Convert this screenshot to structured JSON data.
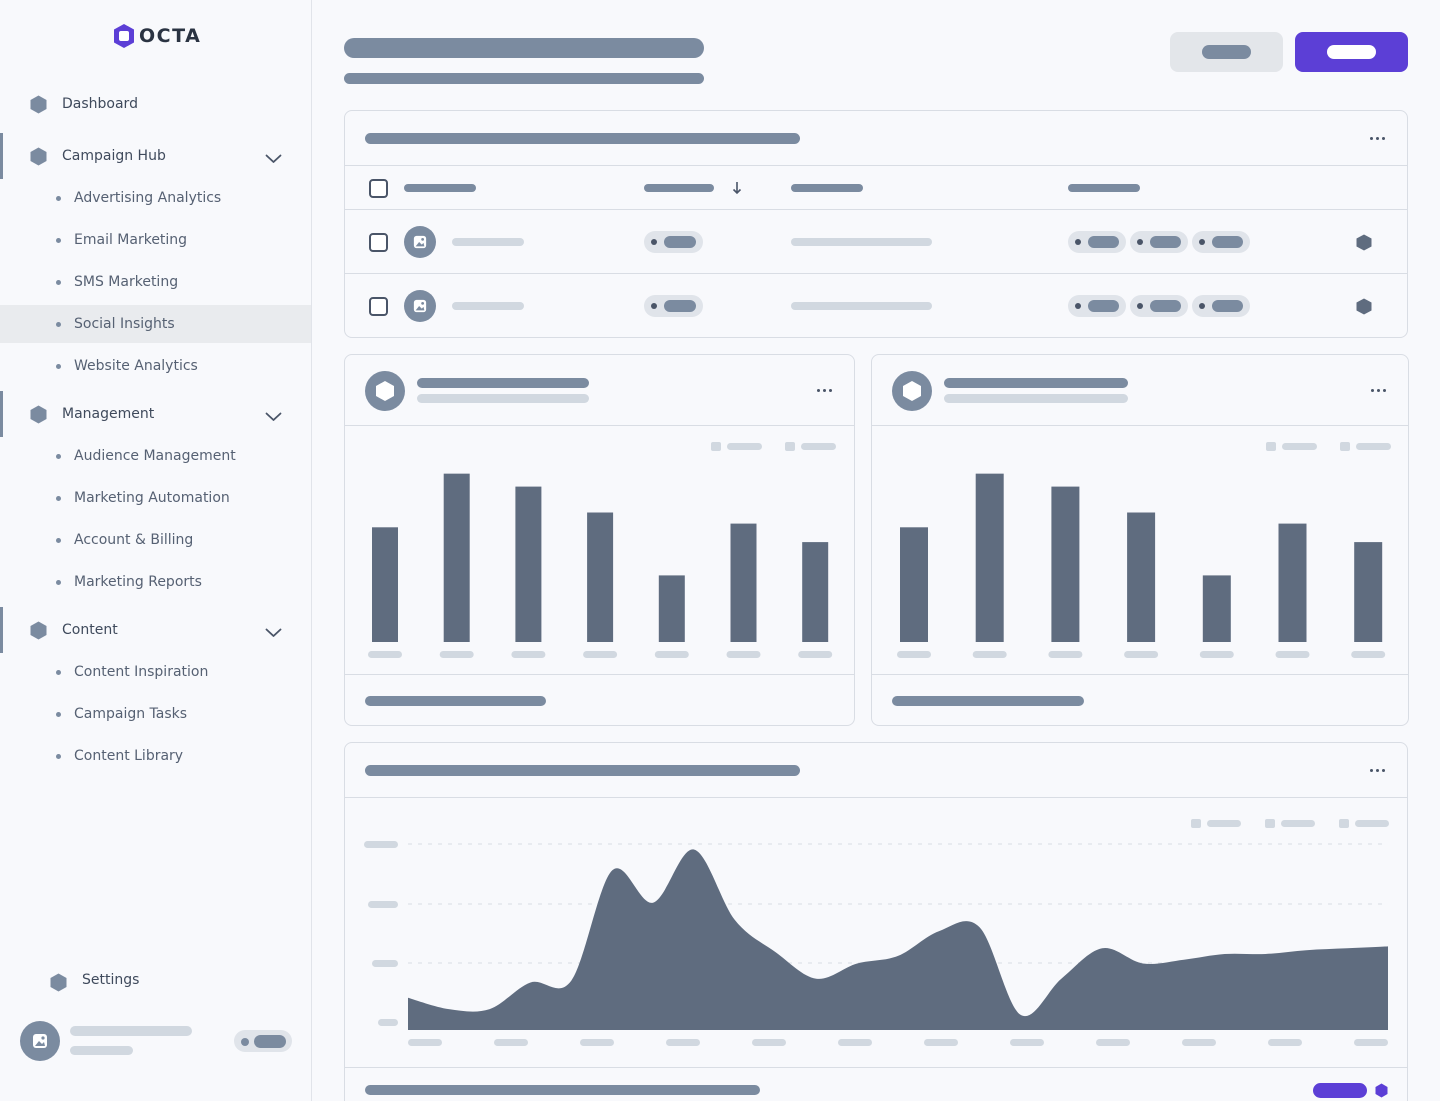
{
  "brand": {
    "name": "OCTA",
    "accent": "#5c3fd6"
  },
  "sidebar": {
    "items": [
      {
        "label": "Dashboard",
        "icon": "hexagon-icon",
        "type": "item"
      },
      {
        "label": "Campaign Hub",
        "icon": "hexagon-icon",
        "type": "group",
        "expanded": true,
        "children": [
          "Advertising Analytics",
          "Email Marketing",
          "SMS Marketing",
          "Social Insights",
          "Website Analytics"
        ]
      },
      {
        "label": "Management",
        "icon": "hexagon-icon",
        "type": "group",
        "expanded": true,
        "children": [
          "Audience Management",
          "Marketing Automation",
          "Account & Billing",
          "Marketing Reports"
        ]
      },
      {
        "label": "Content",
        "icon": "hexagon-icon",
        "type": "group",
        "expanded": true,
        "children": [
          "Content Inspiration",
          "Campaign Tasks",
          "Content Library"
        ]
      }
    ],
    "active_item": "Social Insights",
    "settings_label": "Settings"
  },
  "colors": {
    "placeholder_dark": "#7b8ba0",
    "placeholder_light": "#d1d8e0",
    "chart_fill": "#5f6c7f",
    "border": "#d9dde4"
  },
  "chart_data": [
    {
      "type": "bar",
      "categories": [
        "",
        "",
        "",
        "",
        "",
        "",
        ""
      ],
      "values": [
        62,
        91,
        84,
        70,
        36,
        64,
        54
      ],
      "ylim": [
        0,
        100
      ],
      "grid": false
    },
    {
      "type": "bar",
      "categories": [
        "",
        "",
        "",
        "",
        "",
        "",
        ""
      ],
      "values": [
        62,
        91,
        84,
        70,
        36,
        64,
        54
      ],
      "ylim": [
        0,
        100
      ],
      "grid": false
    },
    {
      "type": "area",
      "x": [
        0,
        1,
        2,
        3,
        4,
        5,
        6,
        7,
        8,
        9,
        10,
        11,
        12,
        13,
        14,
        15,
        16,
        17,
        18,
        19,
        20,
        21,
        22,
        23,
        24
      ],
      "values": [
        17,
        11,
        11,
        25,
        26,
        84,
        67,
        95,
        58,
        41,
        27,
        35,
        39,
        52,
        54,
        8,
        27,
        43,
        35,
        37,
        40,
        40,
        42,
        43,
        44
      ],
      "ylim": [
        0,
        100
      ],
      "grid": true
    }
  ]
}
